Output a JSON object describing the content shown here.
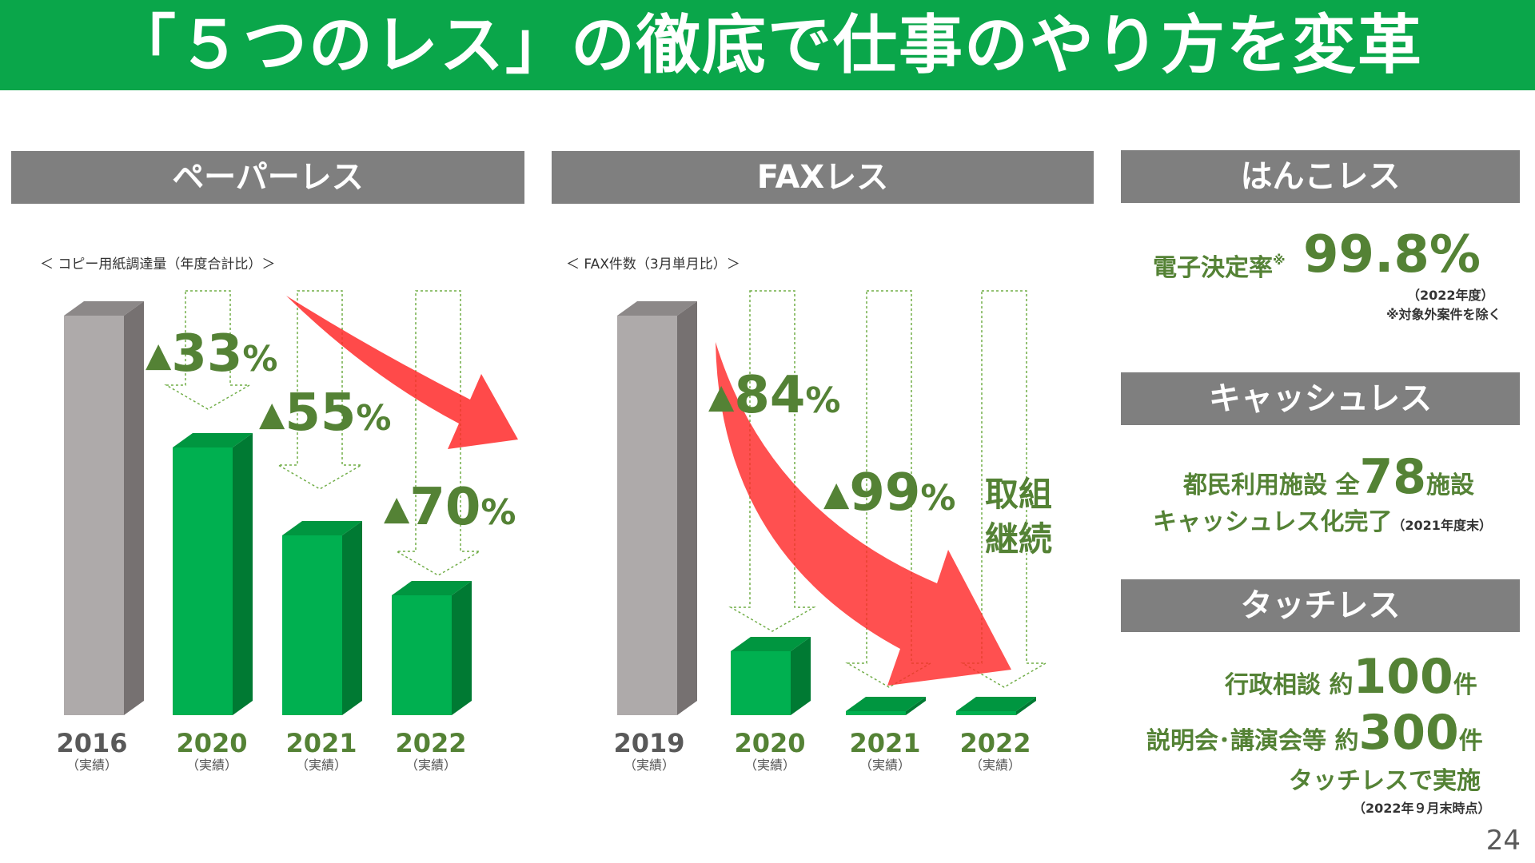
{
  "title": "「５つのレス」の徹底で仕事のやり方を変革",
  "page_number": "24",
  "colors": {
    "green": "#00b050",
    "dark_green": "#548235",
    "arrow_red": "#ff0000",
    "header_gray": "#7f7f7f"
  },
  "paperless": {
    "header": "ペーパーレス",
    "caption": "＜ コピー用紙調達量（年度合計比）＞",
    "reductions": [
      {
        "symbol": "▲",
        "value": "33",
        "unit": "%"
      },
      {
        "symbol": "▲",
        "value": "55",
        "unit": "%"
      },
      {
        "symbol": "▲",
        "value": "70",
        "unit": "%"
      }
    ],
    "bars": [
      {
        "year": "2016",
        "sub": "（実績）"
      },
      {
        "year": "2020",
        "sub": "（実績）"
      },
      {
        "year": "2021",
        "sub": "（実績）"
      },
      {
        "year": "2022",
        "sub": "（実績）"
      }
    ]
  },
  "faxless": {
    "header": "FAXレス",
    "caption": "＜ FAX件数（3月単月比）＞",
    "reductions": [
      {
        "symbol": "▲",
        "value": "84",
        "unit": "%"
      },
      {
        "symbol": "▲",
        "value": "99",
        "unit": "%"
      }
    ],
    "note_line1": "取組",
    "note_line2": "継続",
    "bars": [
      {
        "year": "2019",
        "sub": "（実績）"
      },
      {
        "year": "2020",
        "sub": "（実績）"
      },
      {
        "year": "2021",
        "sub": "（実績）"
      },
      {
        "year": "2022",
        "sub": "（実績）"
      }
    ]
  },
  "chart_data": [
    {
      "type": "bar",
      "title": "ペーパーレス",
      "subtitle": "＜ コピー用紙調達量（年度合計比）＞",
      "categories": [
        "2016",
        "2020",
        "2021",
        "2022"
      ],
      "values": [
        100,
        67,
        45,
        30
      ],
      "ylim": [
        0,
        100
      ],
      "annotations": [
        "▲33%",
        "▲55%",
        "▲70%"
      ]
    },
    {
      "type": "bar",
      "title": "FAXレス",
      "subtitle": "＜ FAX件数（3月単月比）＞",
      "categories": [
        "2019",
        "2020",
        "2021",
        "2022"
      ],
      "values": [
        100,
        16,
        1,
        1
      ],
      "ylim": [
        0,
        100
      ],
      "annotations": [
        "▲84%",
        "▲99%"
      ]
    }
  ],
  "hankoless": {
    "header": "はんこレス",
    "label": "電子決定率",
    "mark": "※",
    "value": "99.8%",
    "note1": "（2022年度）",
    "note2": "※対象外案件を除く"
  },
  "cashless": {
    "header": "キャッシュレス",
    "line1_prefix": "都民利用施設 全",
    "line1_num": "78",
    "line1_suffix": "施設",
    "line2": "キャッシュレス化完了",
    "line2_note": "（2021年度末）"
  },
  "touchless": {
    "header": "タッチレス",
    "line1_prefix": "行政相談 約",
    "line1_num": "100",
    "line1_suffix": "件",
    "line2_prefix": "説明会･講演会等 約",
    "line2_num": "300",
    "line2_suffix": "件",
    "line3": "タッチレスで実施",
    "note": "（2022年９月末時点）"
  }
}
